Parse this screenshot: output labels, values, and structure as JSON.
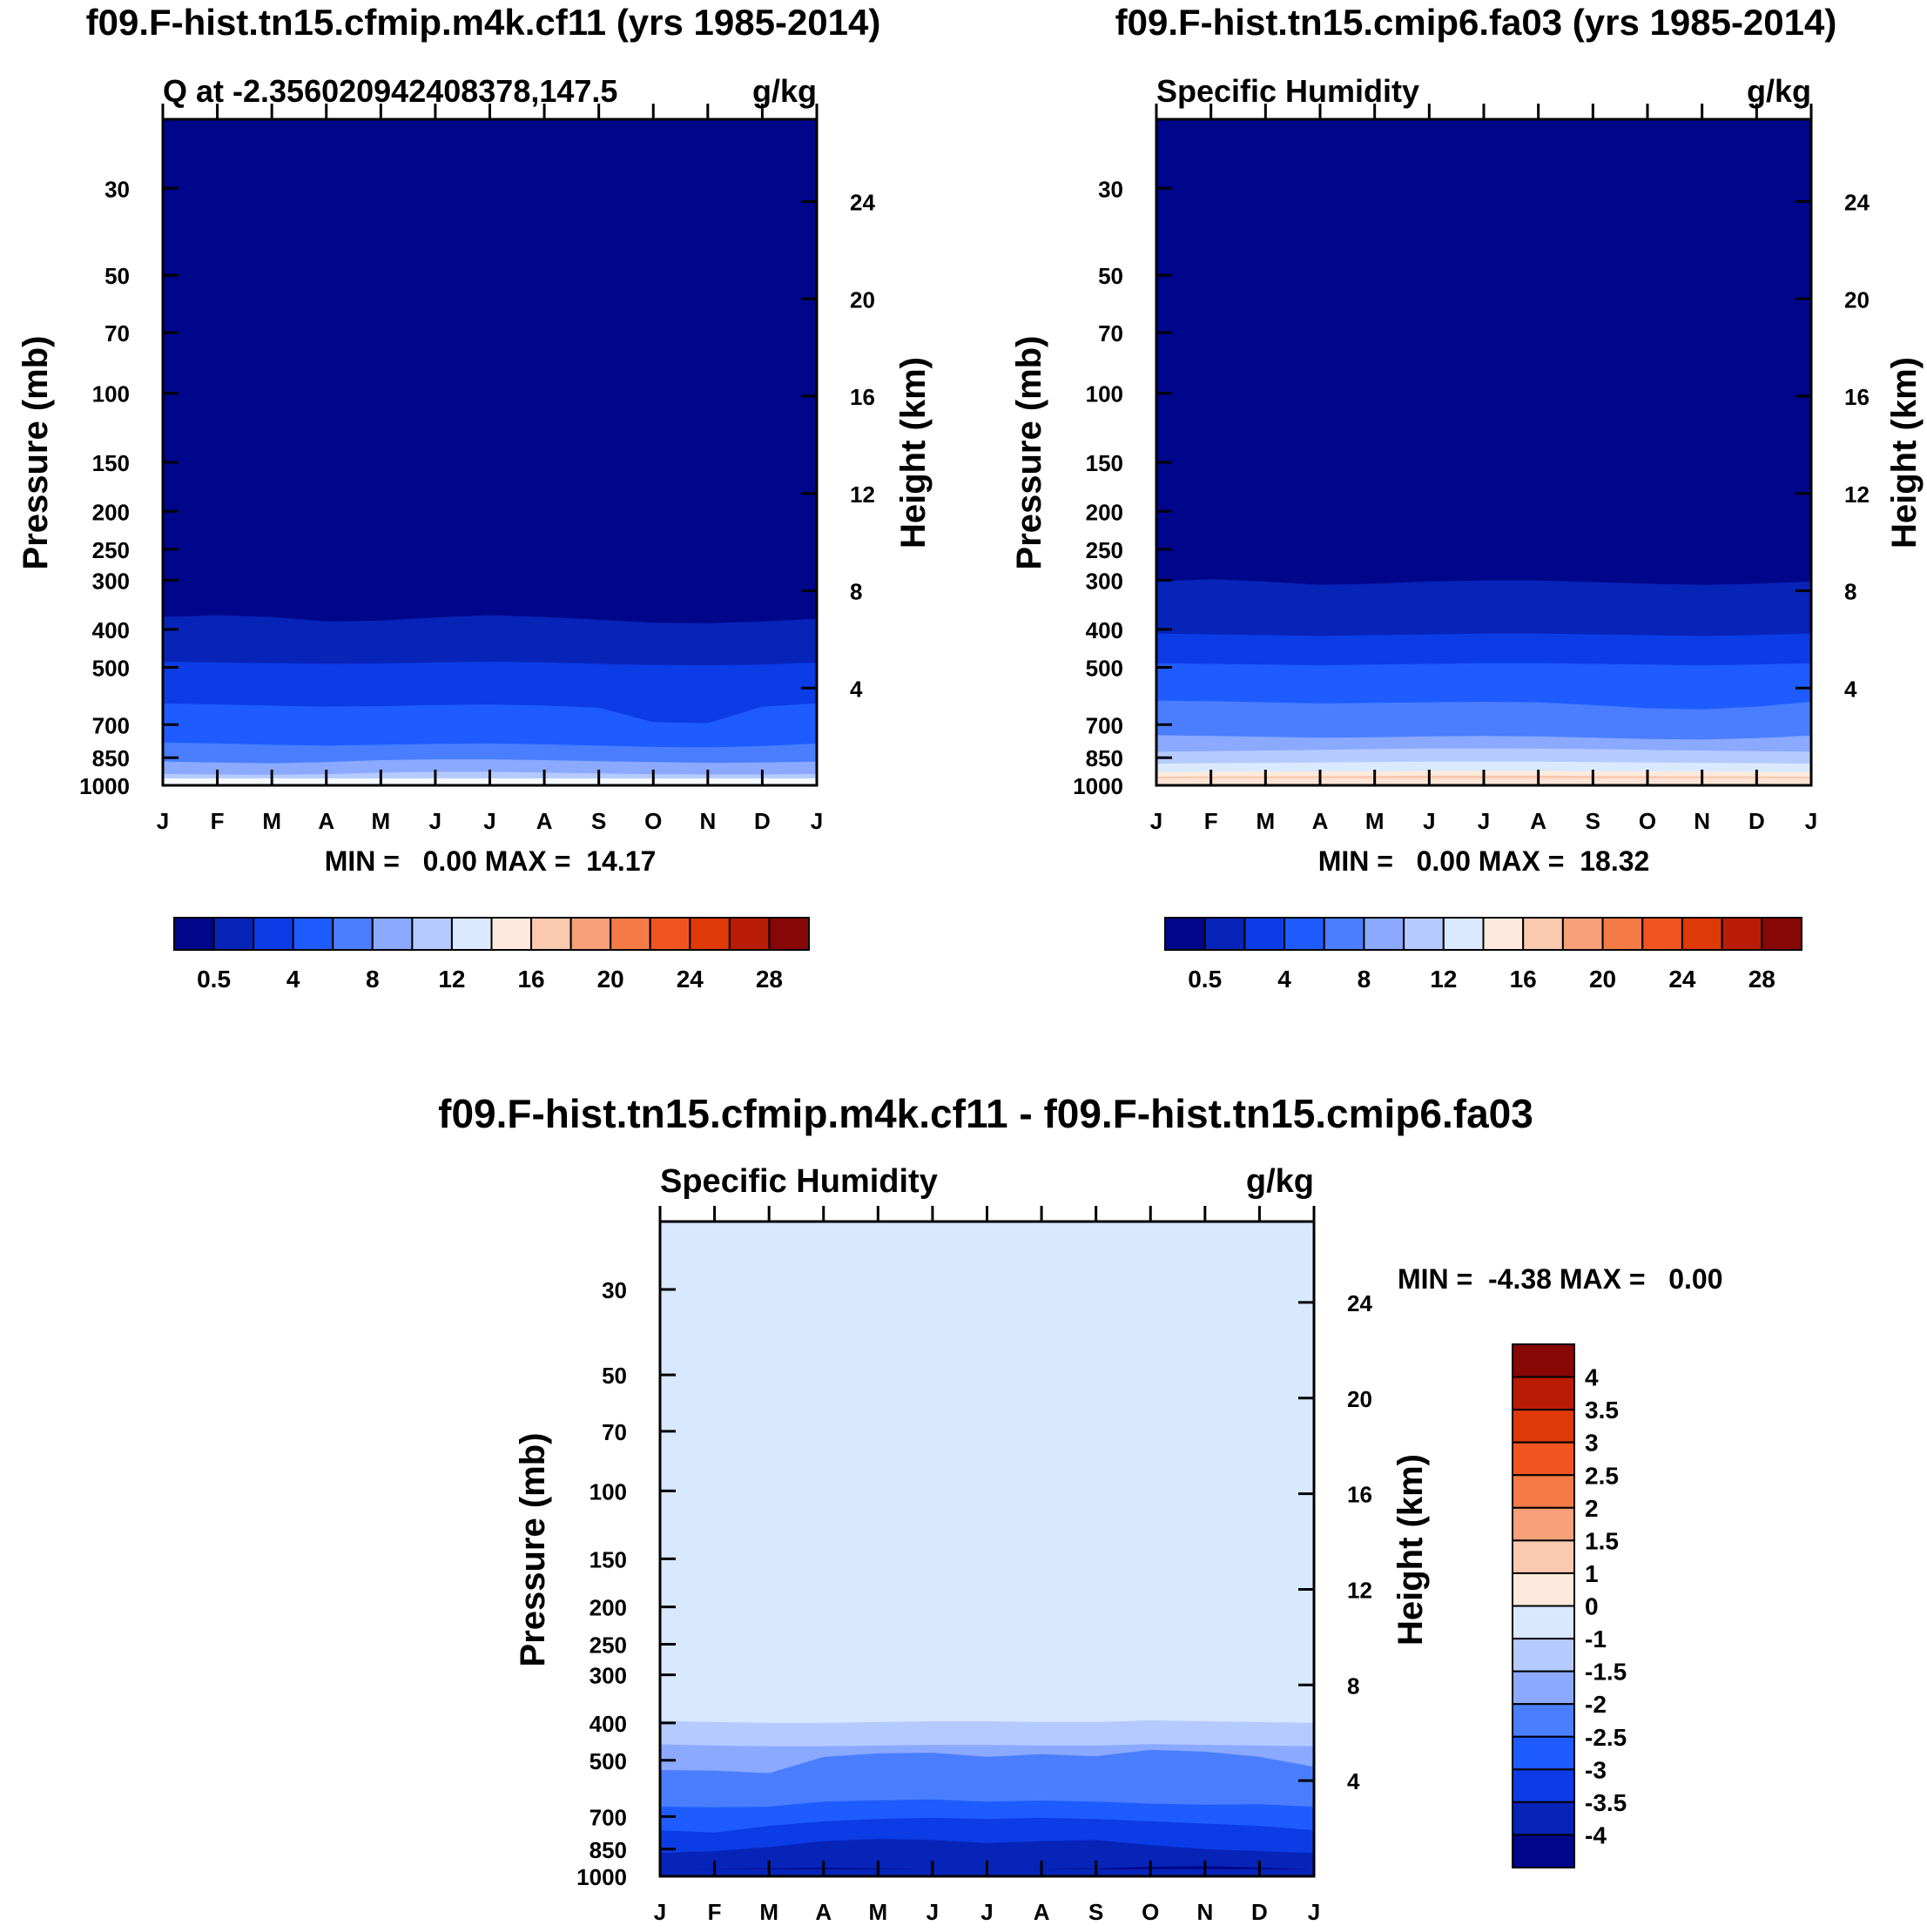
{
  "colors": {
    "abs_scale": [
      "#00068a",
      "#0724b8",
      "#0c3ce6",
      "#1e5cff",
      "#4a7eff",
      "#8aa9ff",
      "#b5caff",
      "#dbe9ff",
      "#fdeadc",
      "#fbc9b0",
      "#f7a07a",
      "#f47a47",
      "#f05521",
      "#de3907",
      "#b91c05",
      "#870606"
    ],
    "diff_scale": [
      "#00068a",
      "#0724b8",
      "#0c3ce6",
      "#1e5cff",
      "#4a7eff",
      "#8aa9ff",
      "#b5caff",
      "#d7e8ff",
      "#fdeadc",
      "#fbc9b0",
      "#f7a07a",
      "#f47a47",
      "#f05521",
      "#de3907",
      "#b91c05",
      "#870606"
    ]
  },
  "chart_data": [
    {
      "type": "heatmap",
      "title": "f09.F-hist.tn15.cfmip.m4k.cf11 (yrs 1985-2014)",
      "subtitle_left": "Q at -2.356020942408378,147.5",
      "subtitle_right": "g/kg",
      "ylabel": "Pressure (mb)",
      "ylabel_right": "Height (km)",
      "y_scale": "log",
      "ylim": [
        1000,
        20
      ],
      "x_ticks": [
        "J",
        "F",
        "M",
        "A",
        "M",
        "J",
        "J",
        "A",
        "S",
        "O",
        "N",
        "D",
        "J"
      ],
      "y_ticks": [
        "30",
        "50",
        "70",
        "100",
        "150",
        "200",
        "250",
        "300",
        "400",
        "500",
        "700",
        "850",
        "1000"
      ],
      "y_ticks_right": [
        "24",
        "20",
        "16",
        "12",
        "8",
        "4"
      ],
      "stats": "MIN =   0.00 MAX =  14.17",
      "min": 0.0,
      "max": 14.17,
      "colorbar_labels": [
        "0.5",
        "4",
        "8",
        "12",
        "16",
        "20",
        "24",
        "28"
      ],
      "contour_boundaries_mb": [
        {
          "level": 0.5,
          "mb": [
            372,
            368,
            372,
            382,
            380,
            373,
            368,
            372,
            378,
            385,
            386,
            382,
            376
          ]
        },
        {
          "level": 2,
          "mb": [
            484,
            486,
            488,
            490,
            489,
            486,
            484,
            486,
            490,
            493,
            494,
            492,
            486
          ]
        },
        {
          "level": 4,
          "mb": [
            618,
            622,
            626,
            630,
            628,
            624,
            622,
            626,
            634,
            690,
            694,
            630,
            618
          ]
        },
        {
          "level": 6,
          "mb": [
            778,
            782,
            788,
            792,
            788,
            784,
            782,
            786,
            792,
            798,
            800,
            794,
            782
          ]
        },
        {
          "level": 8,
          "mb": [
            870,
            874,
            878,
            872,
            862,
            858,
            858,
            862,
            868,
            872,
            876,
            874,
            870
          ]
        },
        {
          "level": 10,
          "mb": [
            935,
            938,
            940,
            936,
            928,
            924,
            924,
            928,
            932,
            936,
            938,
            938,
            935
          ]
        },
        {
          "level": 12,
          "mb": [
            975,
            976,
            978,
            975,
            970,
            968,
            968,
            970,
            973,
            975,
            977,
            977,
            975
          ]
        }
      ]
    },
    {
      "type": "heatmap",
      "title": "f09.F-hist.tn15.cmip6.fa03 (yrs 1985-2014)",
      "subtitle_left": "Specific Humidity",
      "subtitle_right": "g/kg",
      "ylabel": "Pressure (mb)",
      "ylabel_right": "Height (km)",
      "y_scale": "log",
      "ylim": [
        1000,
        20
      ],
      "x_ticks": [
        "J",
        "F",
        "M",
        "A",
        "M",
        "J",
        "J",
        "A",
        "S",
        "O",
        "N",
        "D",
        "J"
      ],
      "y_ticks": [
        "30",
        "50",
        "70",
        "100",
        "150",
        "200",
        "250",
        "300",
        "400",
        "500",
        "700",
        "850",
        "1000"
      ],
      "y_ticks_right": [
        "24",
        "20",
        "16",
        "12",
        "8",
        "4"
      ],
      "stats": "MIN =   0.00 MAX =  18.32",
      "min": 0.0,
      "max": 18.32,
      "colorbar_labels": [
        "0.5",
        "4",
        "8",
        "12",
        "16",
        "20",
        "24",
        "28"
      ],
      "contour_boundaries_mb": [
        {
          "level": 0.5,
          "mb": [
            302,
            298,
            302,
            308,
            306,
            302,
            300,
            300,
            303,
            306,
            308,
            306,
            302
          ]
        },
        {
          "level": 1,
          "mb": [
            410,
            412,
            414,
            416,
            414,
            412,
            410,
            410,
            412,
            414,
            416,
            414,
            410
          ]
        },
        {
          "level": 2,
          "mb": [
            488,
            490,
            492,
            494,
            492,
            490,
            488,
            488,
            490,
            492,
            494,
            492,
            488
          ]
        },
        {
          "level": 4,
          "mb": [
            608,
            610,
            614,
            618,
            616,
            614,
            612,
            614,
            624,
            636,
            640,
            630,
            612
          ]
        },
        {
          "level": 6,
          "mb": [
            745,
            748,
            752,
            756,
            754,
            750,
            748,
            750,
            756,
            762,
            764,
            758,
            746
          ]
        },
        {
          "level": 8,
          "mb": [
            820,
            818,
            815,
            812,
            808,
            805,
            805,
            806,
            808,
            812,
            815,
            818,
            820
          ]
        },
        {
          "level": 10,
          "mb": [
            880,
            878,
            876,
            874,
            872,
            870,
            870,
            870,
            872,
            874,
            876,
            878,
            880
          ]
        },
        {
          "level": 12,
          "mb": [
            925,
            924,
            923,
            922,
            921,
            920,
            920,
            920,
            921,
            922,
            923,
            924,
            925
          ]
        },
        {
          "level": 14,
          "mb": [
            950,
            949,
            948,
            947,
            946,
            945,
            945,
            945,
            946,
            947,
            948,
            949,
            950
          ]
        },
        {
          "level": 16,
          "mb": [
            972,
            972,
            971,
            971,
            970,
            970,
            970,
            970,
            971,
            971,
            972,
            972,
            972
          ]
        }
      ]
    },
    {
      "type": "heatmap",
      "title": "f09.F-hist.tn15.cfmip.m4k.cf11 - f09.F-hist.tn15.cmip6.fa03",
      "subtitle_left": "Specific Humidity",
      "subtitle_right": "g/kg",
      "ylabel": "Pressure (mb)",
      "ylabel_right": "Height (km)",
      "y_scale": "log",
      "ylim": [
        1000,
        20
      ],
      "x_ticks": [
        "J",
        "F",
        "M",
        "A",
        "M",
        "J",
        "J",
        "A",
        "S",
        "O",
        "N",
        "D",
        "J"
      ],
      "y_ticks": [
        "30",
        "50",
        "70",
        "100",
        "150",
        "200",
        "250",
        "300",
        "400",
        "500",
        "700",
        "850",
        "1000"
      ],
      "y_ticks_right": [
        "24",
        "20",
        "16",
        "12",
        "8",
        "4"
      ],
      "stats": "MIN =  -4.38 MAX =   0.00",
      "min": -4.38,
      "max": 0.0,
      "colorbar_labels": [
        "4",
        "3.5",
        "3",
        "2.5",
        "2",
        "1.5",
        "1",
        "0",
        "-1",
        "-1.5",
        "-2",
        "-2.5",
        "-3",
        "-3.5",
        "-4"
      ],
      "contour_boundaries_mb": [
        {
          "level": -1,
          "mb": [
            395,
            398,
            400,
            400,
            398,
            396,
            396,
            398,
            398,
            394,
            396,
            398,
            400
          ]
        },
        {
          "level": -1.5,
          "mb": [
            455,
            458,
            460,
            460,
            458,
            456,
            456,
            458,
            458,
            454,
            456,
            458,
            460
          ]
        },
        {
          "level": -2,
          "mb": [
            530,
            532,
            540,
            490,
            480,
            478,
            490,
            482,
            488,
            470,
            475,
            490,
            520
          ]
        },
        {
          "level": -2.5,
          "mb": [
            660,
            662,
            660,
            640,
            635,
            632,
            640,
            636,
            640,
            648,
            652,
            650,
            660
          ]
        },
        {
          "level": -3,
          "mb": [
            760,
            770,
            740,
            720,
            710,
            705,
            710,
            705,
            710,
            720,
            730,
            740,
            760
          ]
        },
        {
          "level": -3.5,
          "mb": [
            870,
            860,
            840,
            810,
            800,
            805,
            820,
            810,
            805,
            830,
            850,
            860,
            870
          ]
        },
        {
          "level": -4,
          "mb": [
            960,
            958,
            955,
            950,
            955,
            960,
            962,
            958,
            955,
            945,
            940,
            950,
            960
          ]
        }
      ]
    }
  ]
}
